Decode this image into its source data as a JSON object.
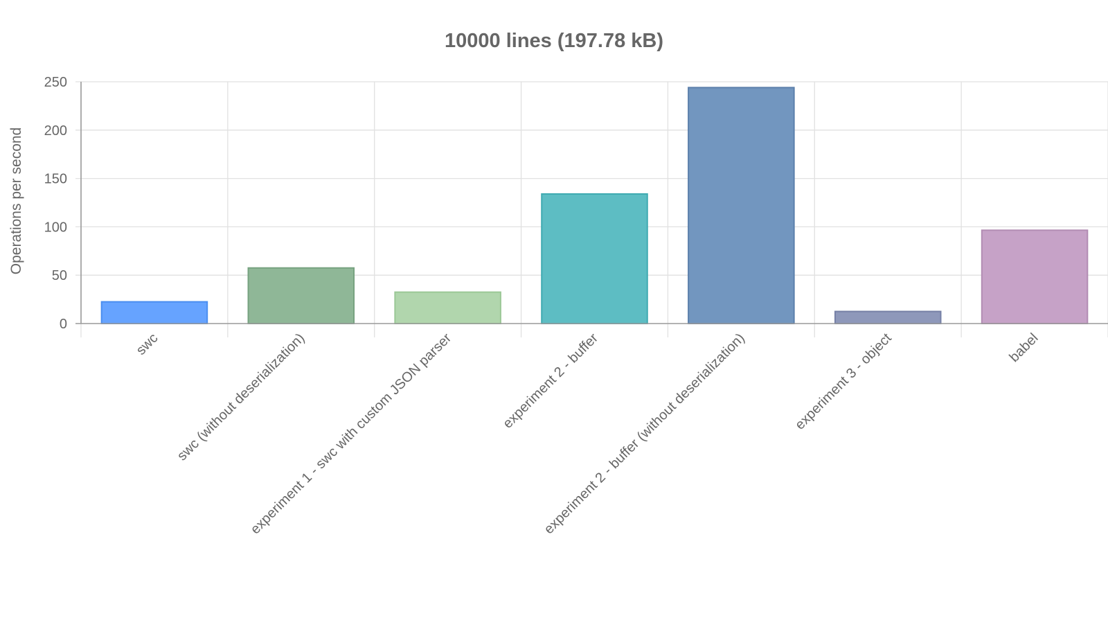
{
  "chart_data": {
    "type": "bar",
    "title": "10000 lines (197.78 kB)",
    "xlabel": "",
    "ylabel": "Operations per second",
    "ylim": [
      0,
      250
    ],
    "yticks": [
      0,
      50,
      100,
      150,
      200,
      250
    ],
    "grid": true,
    "legend": "none",
    "categories": [
      "swc",
      "swc (without deserialization)",
      "experiment 1 - swc with custom JSON parser",
      "experiment 2 - buffer",
      "experiment 2 - buffer (without deserialization)",
      "experiment 3 - object",
      "babel"
    ],
    "values": [
      22.5,
      57.5,
      32.5,
      134,
      244,
      12.5,
      96.5
    ],
    "colors": [
      {
        "fill": "#66a3ff",
        "stroke": "#4a8ef0"
      },
      {
        "fill": "#8fb797",
        "stroke": "#77a280"
      },
      {
        "fill": "#b1d6ad",
        "stroke": "#9bc896"
      },
      {
        "fill": "#5dbdc3",
        "stroke": "#3faab1"
      },
      {
        "fill": "#7296bf",
        "stroke": "#5b7fab"
      },
      {
        "fill": "#8e98ba",
        "stroke": "#7680a6"
      },
      {
        "fill": "#c6a2c7",
        "stroke": "#b28cb3"
      }
    ]
  }
}
